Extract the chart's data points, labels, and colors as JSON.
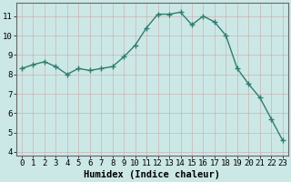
{
  "x": [
    0,
    1,
    2,
    3,
    4,
    5,
    6,
    7,
    8,
    9,
    10,
    11,
    12,
    13,
    14,
    15,
    16,
    17,
    18,
    19,
    20,
    21,
    22,
    23
  ],
  "y": [
    8.3,
    8.5,
    8.65,
    8.4,
    8.0,
    8.3,
    8.2,
    8.3,
    8.4,
    8.9,
    9.5,
    10.4,
    11.1,
    11.1,
    11.2,
    10.55,
    11.0,
    10.7,
    10.0,
    8.3,
    7.5,
    6.8,
    5.7,
    4.6
  ],
  "line_color": "#2e7d6e",
  "marker": "+",
  "marker_size": 4,
  "marker_lw": 1.0,
  "line_width": 1.0,
  "bg_color": "#cce8e6",
  "grid_color_major": "#b8d4d2",
  "grid_color_minor": "#daecea",
  "xlabel": "Humidex (Indice chaleur)",
  "xlim": [
    -0.5,
    23.5
  ],
  "ylim": [
    3.8,
    11.7
  ],
  "yticks": [
    4,
    5,
    6,
    7,
    8,
    9,
    10,
    11
  ],
  "xticks": [
    0,
    1,
    2,
    3,
    4,
    5,
    6,
    7,
    8,
    9,
    10,
    11,
    12,
    13,
    14,
    15,
    16,
    17,
    18,
    19,
    20,
    21,
    22,
    23
  ],
  "xlabel_fontsize": 7.5,
  "tick_fontsize": 6.5
}
